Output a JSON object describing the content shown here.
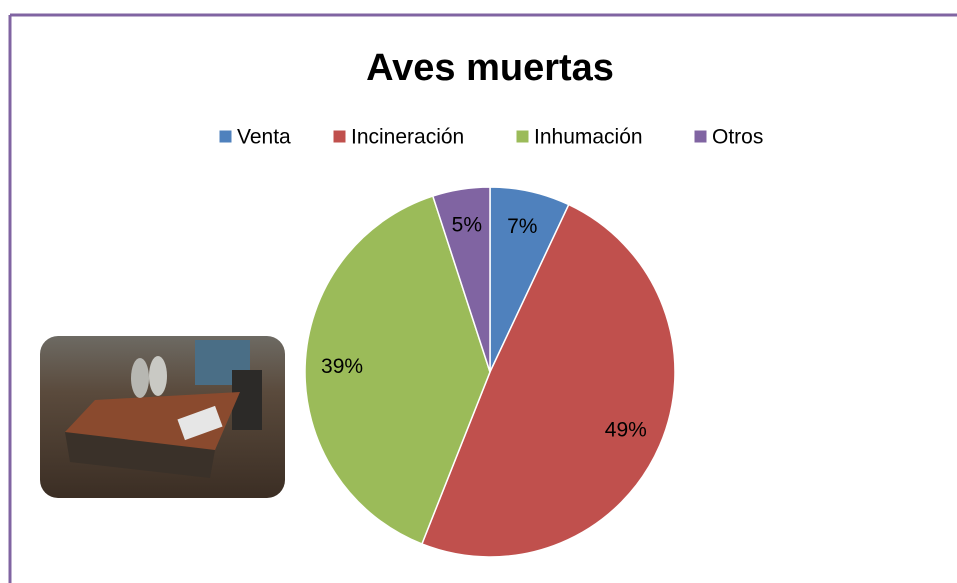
{
  "chart_data": {
    "type": "pie",
    "title": "Aves muertas",
    "categories": [
      "Venta",
      "Incineración",
      "Inhumación",
      "Otros"
    ],
    "values": [
      7,
      49,
      39,
      5
    ],
    "value_labels": [
      "7%",
      "49%",
      "39%",
      "5%"
    ],
    "colors": [
      "#4f81bd",
      "#c0504d",
      "#9bbb59",
      "#8064a2"
    ],
    "legend": "top"
  }
}
